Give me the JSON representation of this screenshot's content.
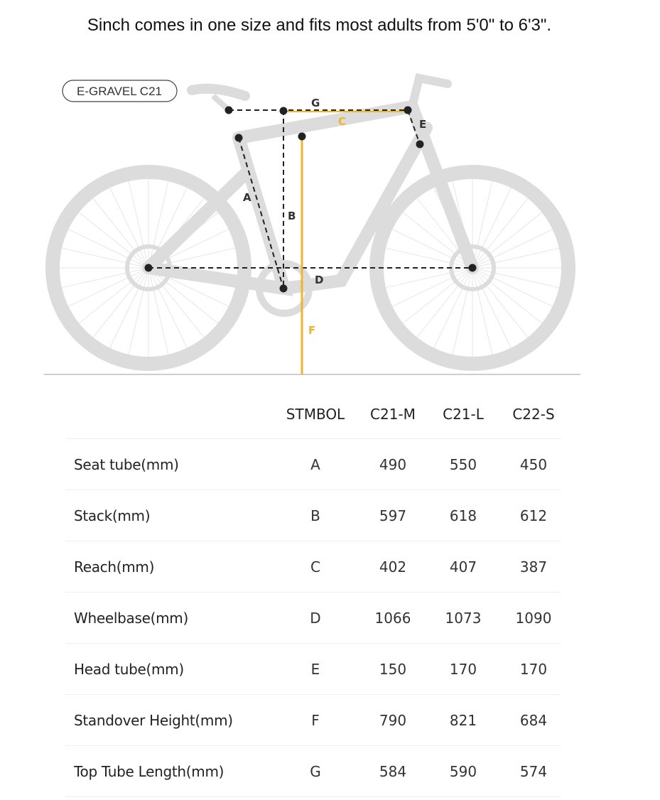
{
  "caption": "Sinch comes in one size and fits most adults from 5'0\" to 6'3\".",
  "diagram": {
    "model_label": "E-GRAVEL C21",
    "markers": [
      "A",
      "B",
      "C",
      "D",
      "E",
      "F",
      "G"
    ],
    "colors": {
      "frame": "#dcdcdc",
      "highlight": "#f0b429",
      "dimension": "#222222"
    }
  },
  "table": {
    "headers": [
      "STMBOL",
      "C21-M",
      "C21-L",
      "C22-S"
    ],
    "rows": [
      {
        "label": "Seat tube(mm)",
        "symbol": "A",
        "values": [
          "490",
          "550",
          "450"
        ]
      },
      {
        "label": "Stack(mm)",
        "symbol": "B",
        "values": [
          "597",
          "618",
          "612"
        ]
      },
      {
        "label": "Reach(mm)",
        "symbol": "C",
        "values": [
          "402",
          "407",
          "387"
        ]
      },
      {
        "label": "Wheelbase(mm)",
        "symbol": "D",
        "values": [
          "1066",
          "1073",
          "1090"
        ]
      },
      {
        "label": "Head tube(mm)",
        "symbol": "E",
        "values": [
          "150",
          "170",
          "170"
        ]
      },
      {
        "label": "Standover Height(mm)",
        "symbol": "F",
        "values": [
          "790",
          "821",
          "684"
        ]
      },
      {
        "label": "Top Tube Length(mm)",
        "symbol": "G",
        "values": [
          "584",
          "590",
          "574"
        ]
      }
    ]
  }
}
